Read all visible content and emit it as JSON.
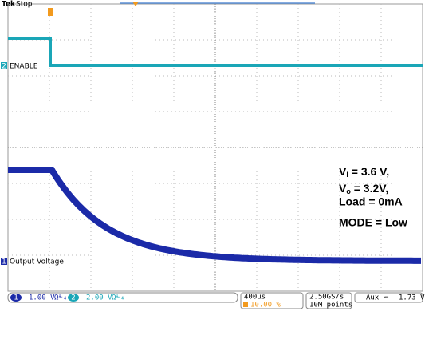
{
  "header": {
    "brand": "Tek",
    "state": "Stop"
  },
  "channels": [
    {
      "marker": "2",
      "label": "ENABLE"
    },
    {
      "marker": "1",
      "label": "Output Voltage"
    }
  ],
  "annotations": [
    {
      "symbol": "V",
      "sub": "I",
      "text": "  = 3.6 V,"
    },
    {
      "symbol": "V",
      "sub": "o",
      "text": " = 3.2V,"
    },
    {
      "text": "Load = 0mA"
    },
    {
      "text": "MODE = Low"
    }
  ],
  "status": {
    "ch1": {
      "marker": "1",
      "scale": "1.00 V",
      "coupling": "Ω⅟₄"
    },
    "ch2": {
      "marker": "2",
      "scale": "2.00 V",
      "coupling": "Ω⅟₄"
    },
    "timebase": "400µs",
    "trigger_pos": "10.00 %",
    "sample_rate": "2.50GS/s",
    "record": "10M points",
    "trigger_source": "Aux",
    "trigger_slope": "⌐",
    "trigger_level": "1.73 V"
  }
}
